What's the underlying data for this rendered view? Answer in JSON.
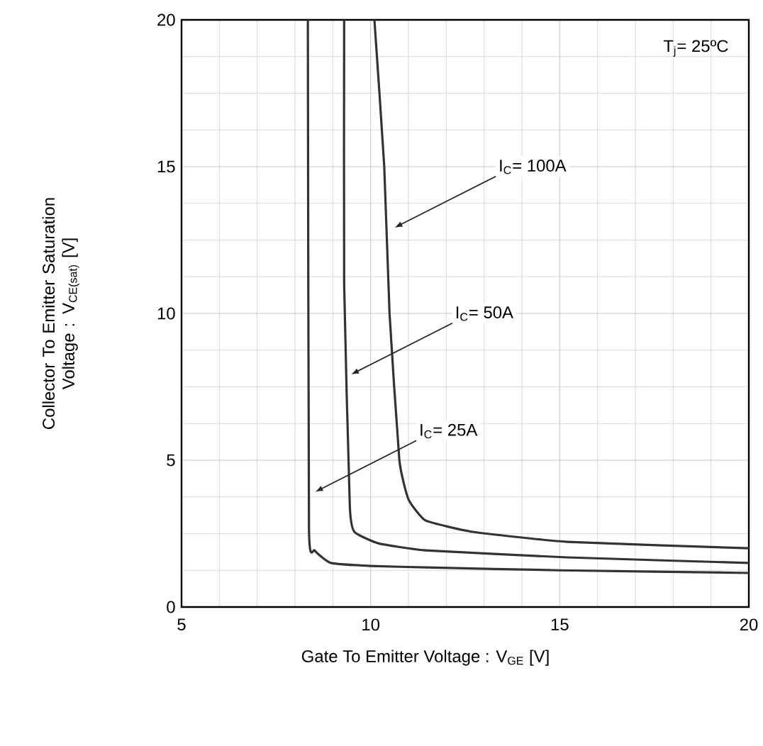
{
  "chart_data": {
    "type": "line",
    "xlabel": "Gate To Emitter Voltage : V$_{GE}$ [V]",
    "ylabel": "Collector To Emitter Saturation Voltage : V$_{CE(sat)}$ [V]",
    "xlim": [
      5,
      20
    ],
    "ylim": [
      0,
      20
    ],
    "xticks": [
      5,
      10,
      15,
      20
    ],
    "yticks": [
      0,
      5,
      10,
      15,
      20
    ],
    "grid": true,
    "marker": "none",
    "line_style": "solid",
    "series": [
      {
        "color": "#333333",
        "x": [
          8.34,
          8.37,
          8.52,
          8.95,
          10,
          11.45,
          15,
          20
        ],
        "values": [
          20,
          2.66,
          1.93,
          1.5,
          1.4,
          1.35,
          1.25,
          1.16
        ]
      },
      {
        "color": "#333333",
        "x": [
          9.3,
          9.3,
          9.45,
          9.57,
          10.2,
          11.45,
          15.2,
          20
        ],
        "values": [
          20,
          11,
          3.43,
          2.56,
          2.17,
          1.93,
          1.69,
          1.5
        ]
      },
      {
        "color": "#333333",
        "x": [
          10.1,
          10.36,
          10.5,
          10.76,
          11,
          11.45,
          12.7,
          15.2,
          20
        ],
        "values": [
          20,
          15,
          10,
          5,
          3.67,
          2.95,
          2.56,
          2.22,
          2.0
        ]
      }
    ],
    "annotations": [
      {
        "text": "I$_{C}$= 100A",
        "x": 10.6,
        "y": 12.9
      },
      {
        "text": "I$_{C}$= 50A",
        "x": 9.45,
        "y": 7.9
      },
      {
        "text": "I$_{C}$= 25A",
        "x": 8.5,
        "y": 3.9
      },
      "T$_{j}$= 25ºC"
    ]
  }
}
